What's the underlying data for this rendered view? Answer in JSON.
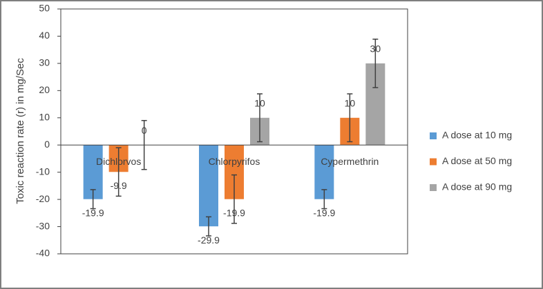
{
  "chart_data": {
    "type": "bar",
    "y_label": "Toxic reaction rate (r) in mg/Sec",
    "categories": [
      "Dichlorvos",
      "Chlorpyrifos",
      "Cypermethrin"
    ],
    "series": [
      {
        "name": "A dose at 10 mg",
        "color": "#5b9bd5",
        "values": [
          -19.9,
          -29.9,
          -19.9
        ],
        "errors": [
          3.5,
          3.5,
          3.5
        ]
      },
      {
        "name": "A dose at 50 mg",
        "color": "#ed7d31",
        "values": [
          -9.9,
          -19.9,
          10
        ],
        "errors": [
          8.9,
          8.9,
          8.8
        ]
      },
      {
        "name": "A dose at 90 mg",
        "color": "#a5a5a5",
        "values": [
          0,
          10,
          30
        ],
        "errors": [
          9,
          8.8,
          8.9
        ]
      }
    ],
    "ylim": [
      -40,
      50
    ],
    "yticks": [
      -40,
      -30,
      -20,
      -10,
      0,
      10,
      20,
      30,
      40,
      50
    ],
    "legend": "right"
  }
}
